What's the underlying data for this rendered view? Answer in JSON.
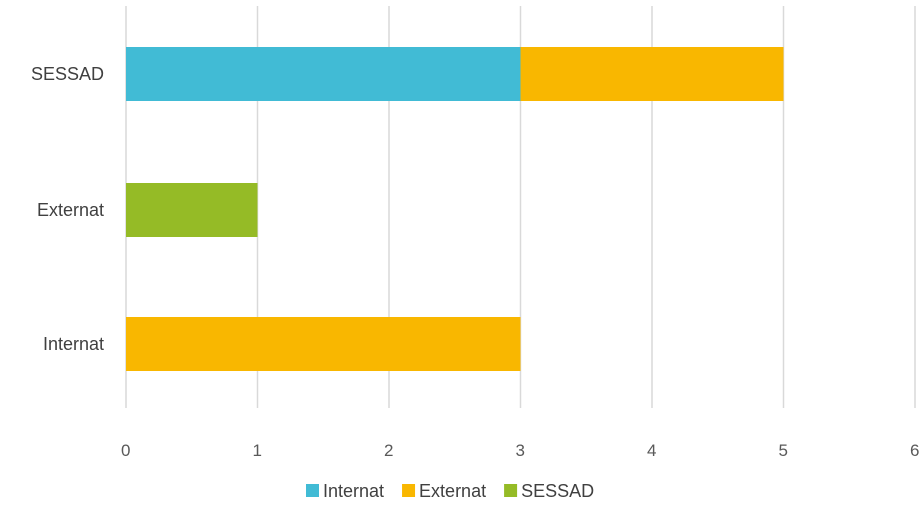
{
  "chart_data": {
    "type": "bar",
    "orientation": "horizontal",
    "stacked": true,
    "categories": [
      "Internat",
      "Externat",
      "SESSAD"
    ],
    "series": [
      {
        "name": "Internat",
        "color": "#41bbd5",
        "values": [
          0,
          0,
          3
        ]
      },
      {
        "name": "Externat",
        "color": "#f9b700",
        "values": [
          3,
          0,
          2
        ]
      },
      {
        "name": "SESSAD",
        "color": "#95bb26",
        "values": [
          0,
          1,
          0
        ]
      }
    ],
    "xlim": [
      0,
      6
    ],
    "xticks": [
      "0",
      "1",
      "2",
      "3",
      "4",
      "5",
      "6"
    ],
    "grid": true,
    "legend_position": "bottom"
  }
}
